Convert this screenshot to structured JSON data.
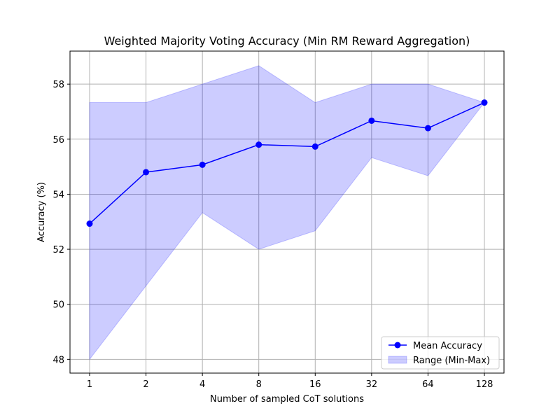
{
  "chart_data": {
    "type": "line",
    "title": "Weighted Majority Voting Accuracy (Min RM Reward Aggregation)",
    "xlabel": "Number of sampled CoT solutions",
    "ylabel": "Accuracy (%)",
    "categories": [
      "1",
      "2",
      "4",
      "8",
      "16",
      "32",
      "64",
      "128"
    ],
    "x_scale": "log2",
    "ylim": [
      47.5,
      59.2
    ],
    "yticks": [
      48,
      50,
      52,
      54,
      56,
      58
    ],
    "grid": true,
    "legend_position": "lower-right",
    "series": [
      {
        "name": "Mean Accuracy",
        "kind": "line-markers",
        "color": "#0000ff",
        "values": [
          52.93,
          54.8,
          55.07,
          55.8,
          55.73,
          56.67,
          56.4,
          57.33
        ]
      },
      {
        "name": "Range (Min-Max)",
        "kind": "band",
        "color": "#0000ff",
        "lower": [
          48.0,
          50.67,
          53.33,
          52.0,
          52.67,
          55.33,
          54.67,
          57.33
        ],
        "upper": [
          57.33,
          57.33,
          58.0,
          58.67,
          57.33,
          58.0,
          58.0,
          57.33
        ]
      }
    ]
  }
}
